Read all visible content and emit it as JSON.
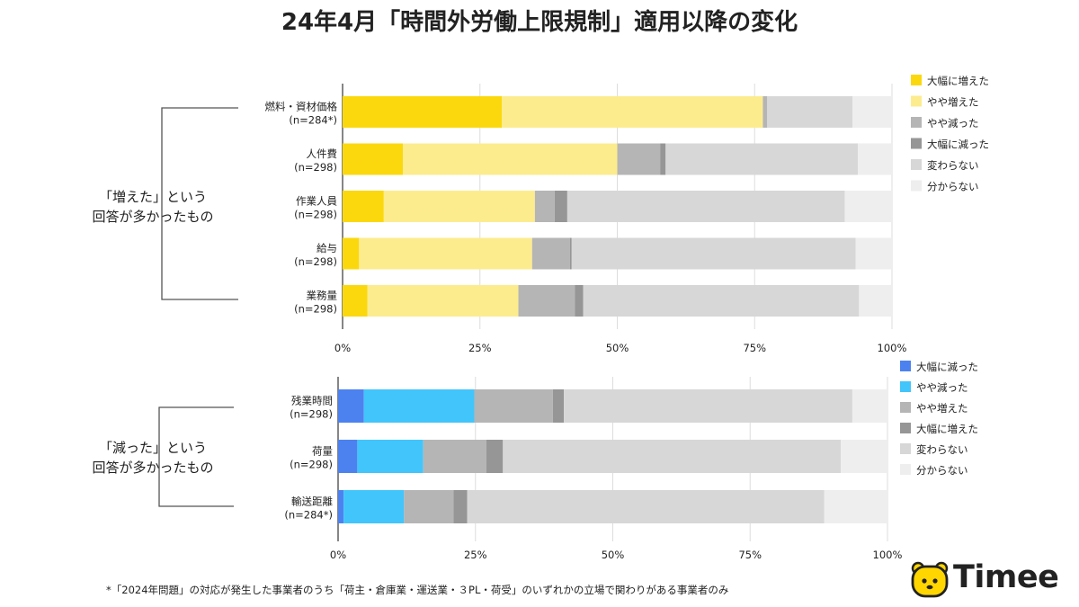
{
  "title": "24年4月「時間外労働上限規制」適用以降の変化",
  "footnote": "*「2024年問題」の対応が発生した事業者のうち「荷主・倉庫業・運送業・３PL・荷受」のいずれかの立場で関わりがある事業者のみ",
  "brand": {
    "name": "Timee",
    "color": "#FFD600"
  },
  "groups": {
    "increased": {
      "line1": "「増えた」という",
      "line2": "回答が多かったもの"
    },
    "decreased": {
      "line1": "「減った」という",
      "line2": "回答が多かったもの"
    }
  },
  "chart_data": [
    {
      "type": "bar",
      "orientation": "horizontal",
      "stacked": true,
      "categories": [
        {
          "name": "燃料・資材価格",
          "n": "(n=284*)"
        },
        {
          "name": "人件費",
          "n": "(n=298)"
        },
        {
          "name": "作業人員",
          "n": "(n=298)"
        },
        {
          "name": "給与",
          "n": "(n=298)"
        },
        {
          "name": "業務量",
          "n": "(n=298)"
        }
      ],
      "xlim": [
        0,
        100
      ],
      "xticks": [
        "0%",
        "25%",
        "50%",
        "75%",
        "100%"
      ],
      "legend_position": "right",
      "series": [
        {
          "name": "大幅に増えた",
          "color": "#FBD80D",
          "values": [
            29.0,
            11.0,
            7.5,
            3.0,
            4.5
          ]
        },
        {
          "name": "やや増えた",
          "color": "#FCEC8E",
          "values": [
            47.5,
            39.0,
            27.5,
            31.5,
            27.5
          ]
        },
        {
          "name": "やや減った",
          "color": "#B5B5B5",
          "values": [
            0.8,
            7.8,
            3.6,
            6.9,
            10.3
          ]
        },
        {
          "name": "大幅に減った",
          "color": "#969696",
          "values": [
            0.0,
            1.0,
            2.3,
            0.3,
            1.5
          ]
        },
        {
          "name": "変わらない",
          "color": "#D7D7D7",
          "values": [
            15.5,
            35.0,
            50.5,
            51.7,
            50.2
          ]
        },
        {
          "name": "分からない",
          "color": "#EEEEEE",
          "values": [
            7.2,
            6.2,
            8.6,
            6.6,
            6.0
          ]
        }
      ]
    },
    {
      "type": "bar",
      "orientation": "horizontal",
      "stacked": true,
      "categories": [
        {
          "name": "残業時間",
          "n": "(n=298)"
        },
        {
          "name": "荷量",
          "n": "(n=298)"
        },
        {
          "name": "輸送距離",
          "n": "(n=284*)"
        }
      ],
      "xlim": [
        0,
        100
      ],
      "xticks": [
        "0%",
        "25%",
        "50%",
        "75%",
        "100%"
      ],
      "legend_position": "right",
      "series": [
        {
          "name": "大幅に減った",
          "color": "#4C82F0",
          "values": [
            4.7,
            3.5,
            1.0
          ]
        },
        {
          "name": "やや減った",
          "color": "#42C5FB",
          "values": [
            20.1,
            12.0,
            11.0
          ]
        },
        {
          "name": "やや増えた",
          "color": "#B5B5B5",
          "values": [
            14.3,
            11.5,
            9.0
          ]
        },
        {
          "name": "大幅に増えた",
          "color": "#969696",
          "values": [
            2.0,
            3.0,
            2.5
          ]
        },
        {
          "name": "変わらない",
          "color": "#D7D7D7",
          "values": [
            52.5,
            61.5,
            65.0
          ]
        },
        {
          "name": "分からない",
          "color": "#EEEEEE",
          "values": [
            6.4,
            8.5,
            11.5
          ]
        }
      ]
    }
  ]
}
